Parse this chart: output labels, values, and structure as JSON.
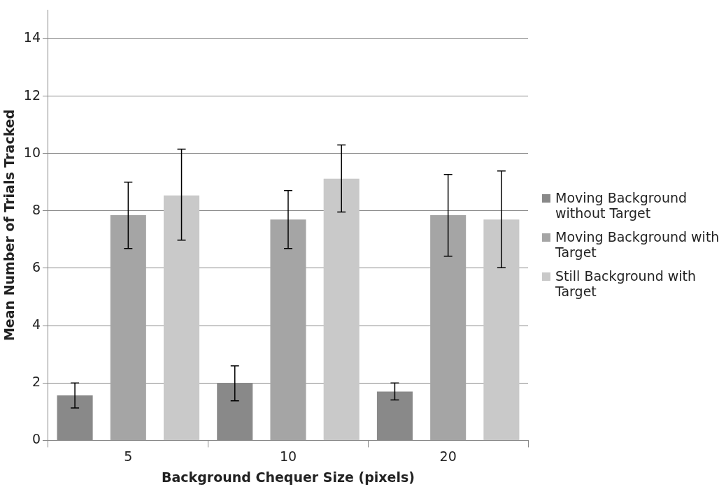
{
  "chart_data": {
    "type": "bar",
    "xlabel": "Background Chequer Size (pixels)",
    "ylabel": "Mean Number of Trials Tracked",
    "categories": [
      "5",
      "10",
      "20"
    ],
    "series": [
      {
        "name": "Moving Background without Target",
        "color": "#898989",
        "values": [
          1.57,
          2.0,
          1.7
        ],
        "errors": [
          [
            1.13,
            2.0
          ],
          [
            1.38,
            2.6
          ],
          [
            1.41,
            2.0
          ]
        ]
      },
      {
        "name": "Moving Background with Target",
        "color": "#a5a5a5",
        "values": [
          7.85,
          7.7,
          7.85
        ],
        "errors": [
          [
            6.69,
            9.0
          ],
          [
            6.69,
            8.71
          ],
          [
            6.42,
            9.27
          ]
        ]
      },
      {
        "name": "Still Background with Target",
        "color": "#c9c9c9",
        "values": [
          8.54,
          9.12,
          7.7
        ],
        "errors": [
          [
            6.98,
            10.15
          ],
          [
            7.96,
            10.3
          ],
          [
            6.02,
            9.39
          ]
        ]
      }
    ],
    "ylim": [
      0,
      15
    ],
    "yticks": [
      0,
      2,
      4,
      6,
      8,
      10,
      12,
      14
    ],
    "grid": "y",
    "legend": "right"
  }
}
